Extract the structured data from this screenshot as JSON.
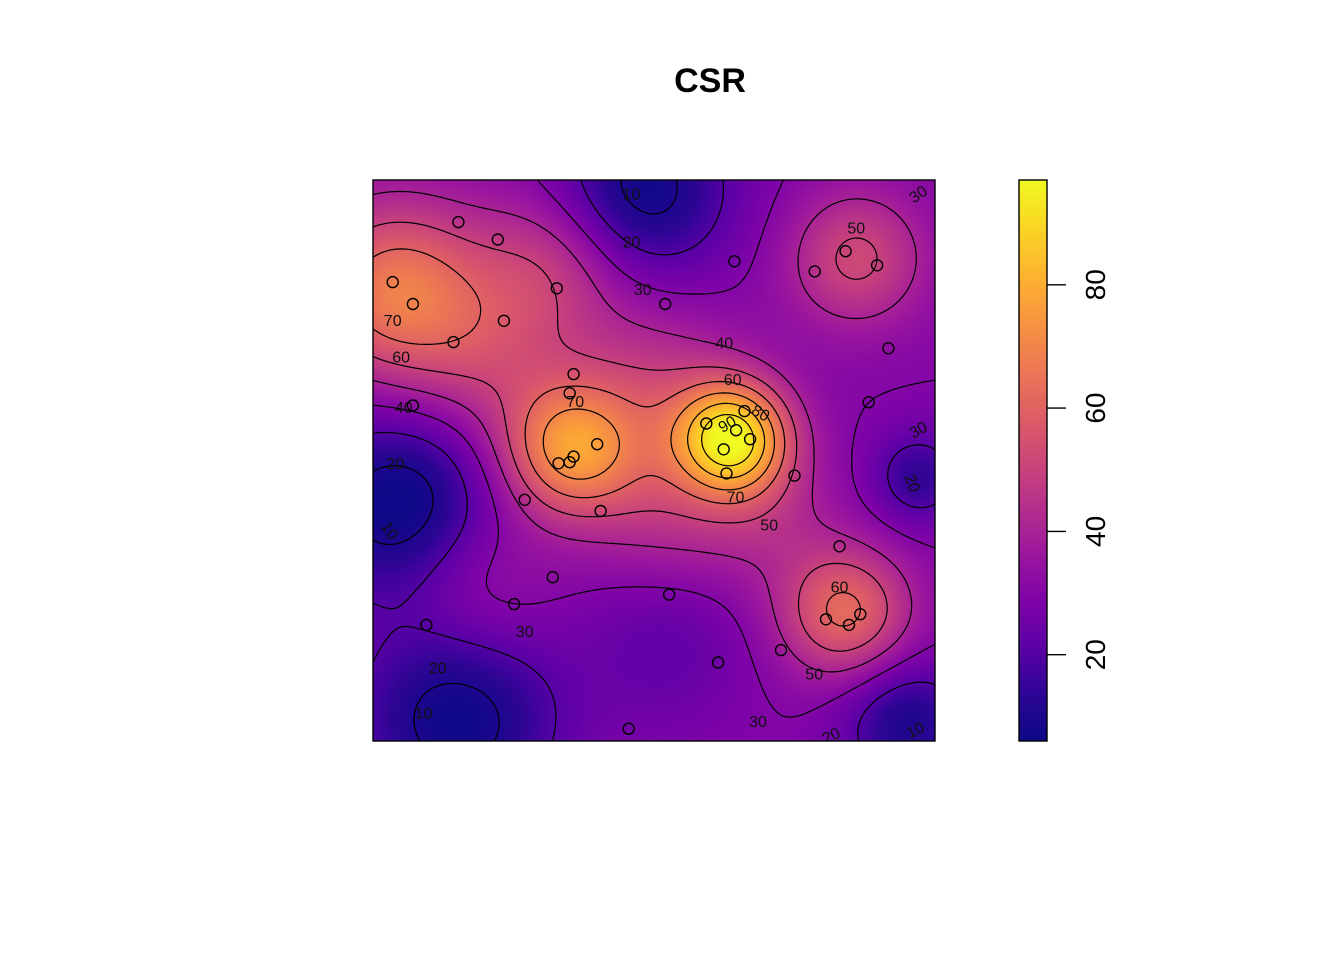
{
  "chart_data": {
    "type": "heatmap",
    "title": "CSR",
    "xlabel": "",
    "ylabel": "",
    "xlim": [
      0,
      1
    ],
    "ylim": [
      0,
      1
    ],
    "zlim": [
      6,
      97
    ],
    "colorbar": {
      "placement": "right",
      "ticks": [
        20,
        40,
        60,
        80
      ],
      "tick_labels": [
        "20",
        "40",
        "60",
        "80"
      ],
      "palette": [
        "#0d0887",
        "#2c0594",
        "#5c01a6",
        "#7e03a8",
        "#9c179e",
        "#b52f8c",
        "#cc4778",
        "#de5f65",
        "#ed7953",
        "#f89540",
        "#fdb42f",
        "#fbd524",
        "#f0f921"
      ]
    },
    "contour_levels": [
      10,
      20,
      30,
      40,
      50,
      60,
      70,
      80,
      90
    ],
    "contour_labels": [
      {
        "text": "10",
        "x": 0.46,
        "y": 0.975,
        "angle": 0
      },
      {
        "text": "20",
        "x": 0.46,
        "y": 0.89,
        "angle": 0
      },
      {
        "text": "30",
        "x": 0.48,
        "y": 0.805,
        "angle": 0
      },
      {
        "text": "30",
        "x": 0.97,
        "y": 0.975,
        "angle": 35
      },
      {
        "text": "50",
        "x": 0.86,
        "y": 0.915,
        "angle": 0
      },
      {
        "text": "70",
        "x": 0.035,
        "y": 0.75,
        "angle": 0
      },
      {
        "text": "60",
        "x": 0.05,
        "y": 0.685,
        "angle": 0
      },
      {
        "text": "40",
        "x": 0.625,
        "y": 0.71,
        "angle": 0
      },
      {
        "text": "60",
        "x": 0.64,
        "y": 0.645,
        "angle": 0
      },
      {
        "text": "70",
        "x": 0.36,
        "y": 0.605,
        "angle": 0
      },
      {
        "text": "90",
        "x": 0.63,
        "y": 0.565,
        "angle": 30
      },
      {
        "text": "80",
        "x": 0.69,
        "y": 0.585,
        "angle": -30
      },
      {
        "text": "40",
        "x": 0.055,
        "y": 0.595,
        "angle": 0
      },
      {
        "text": "30",
        "x": 0.97,
        "y": 0.555,
        "angle": 30
      },
      {
        "text": "20",
        "x": 0.04,
        "y": 0.495,
        "angle": 0
      },
      {
        "text": "20",
        "x": 0.96,
        "y": 0.46,
        "angle": -70
      },
      {
        "text": "70",
        "x": 0.645,
        "y": 0.435,
        "angle": 0
      },
      {
        "text": "50",
        "x": 0.705,
        "y": 0.385,
        "angle": 0
      },
      {
        "text": "10",
        "x": 0.03,
        "y": 0.375,
        "angle": -55
      },
      {
        "text": "60",
        "x": 0.83,
        "y": 0.275,
        "angle": 0
      },
      {
        "text": "30",
        "x": 0.27,
        "y": 0.195,
        "angle": 0
      },
      {
        "text": "20",
        "x": 0.115,
        "y": 0.13,
        "angle": 0
      },
      {
        "text": "50",
        "x": 0.785,
        "y": 0.12,
        "angle": 0
      },
      {
        "text": "10",
        "x": 0.09,
        "y": 0.05,
        "angle": 0
      },
      {
        "text": "30",
        "x": 0.685,
        "y": 0.035,
        "angle": 0
      },
      {
        "text": "20",
        "x": 0.815,
        "y": 0.01,
        "angle": 25
      },
      {
        "text": "10",
        "x": 0.965,
        "y": 0.02,
        "angle": 25
      }
    ],
    "points": [
      {
        "x": 0.152,
        "y": 0.925
      },
      {
        "x": 0.222,
        "y": 0.894
      },
      {
        "x": 0.643,
        "y": 0.855
      },
      {
        "x": 0.841,
        "y": 0.873
      },
      {
        "x": 0.897,
        "y": 0.848
      },
      {
        "x": 0.786,
        "y": 0.837
      },
      {
        "x": 0.035,
        "y": 0.818
      },
      {
        "x": 0.327,
        "y": 0.807
      },
      {
        "x": 0.52,
        "y": 0.779
      },
      {
        "x": 0.071,
        "y": 0.779
      },
      {
        "x": 0.233,
        "y": 0.749
      },
      {
        "x": 0.143,
        "y": 0.711
      },
      {
        "x": 0.917,
        "y": 0.7
      },
      {
        "x": 0.357,
        "y": 0.654
      },
      {
        "x": 0.35,
        "y": 0.62
      },
      {
        "x": 0.882,
        "y": 0.604
      },
      {
        "x": 0.071,
        "y": 0.598
      },
      {
        "x": 0.593,
        "y": 0.566
      },
      {
        "x": 0.661,
        "y": 0.588
      },
      {
        "x": 0.646,
        "y": 0.554
      },
      {
        "x": 0.671,
        "y": 0.538
      },
      {
        "x": 0.624,
        "y": 0.52
      },
      {
        "x": 0.399,
        "y": 0.529
      },
      {
        "x": 0.357,
        "y": 0.507
      },
      {
        "x": 0.35,
        "y": 0.497
      },
      {
        "x": 0.33,
        "y": 0.495
      },
      {
        "x": 0.629,
        "y": 0.477
      },
      {
        "x": 0.75,
        "y": 0.473
      },
      {
        "x": 0.27,
        "y": 0.43
      },
      {
        "x": 0.405,
        "y": 0.41
      },
      {
        "x": 0.83,
        "y": 0.347
      },
      {
        "x": 0.32,
        "y": 0.292
      },
      {
        "x": 0.527,
        "y": 0.261
      },
      {
        "x": 0.251,
        "y": 0.244
      },
      {
        "x": 0.867,
        "y": 0.226
      },
      {
        "x": 0.806,
        "y": 0.217
      },
      {
        "x": 0.847,
        "y": 0.207
      },
      {
        "x": 0.095,
        "y": 0.207
      },
      {
        "x": 0.726,
        "y": 0.162
      },
      {
        "x": 0.614,
        "y": 0.14
      },
      {
        "x": 0.455,
        "y": 0.022
      }
    ]
  }
}
